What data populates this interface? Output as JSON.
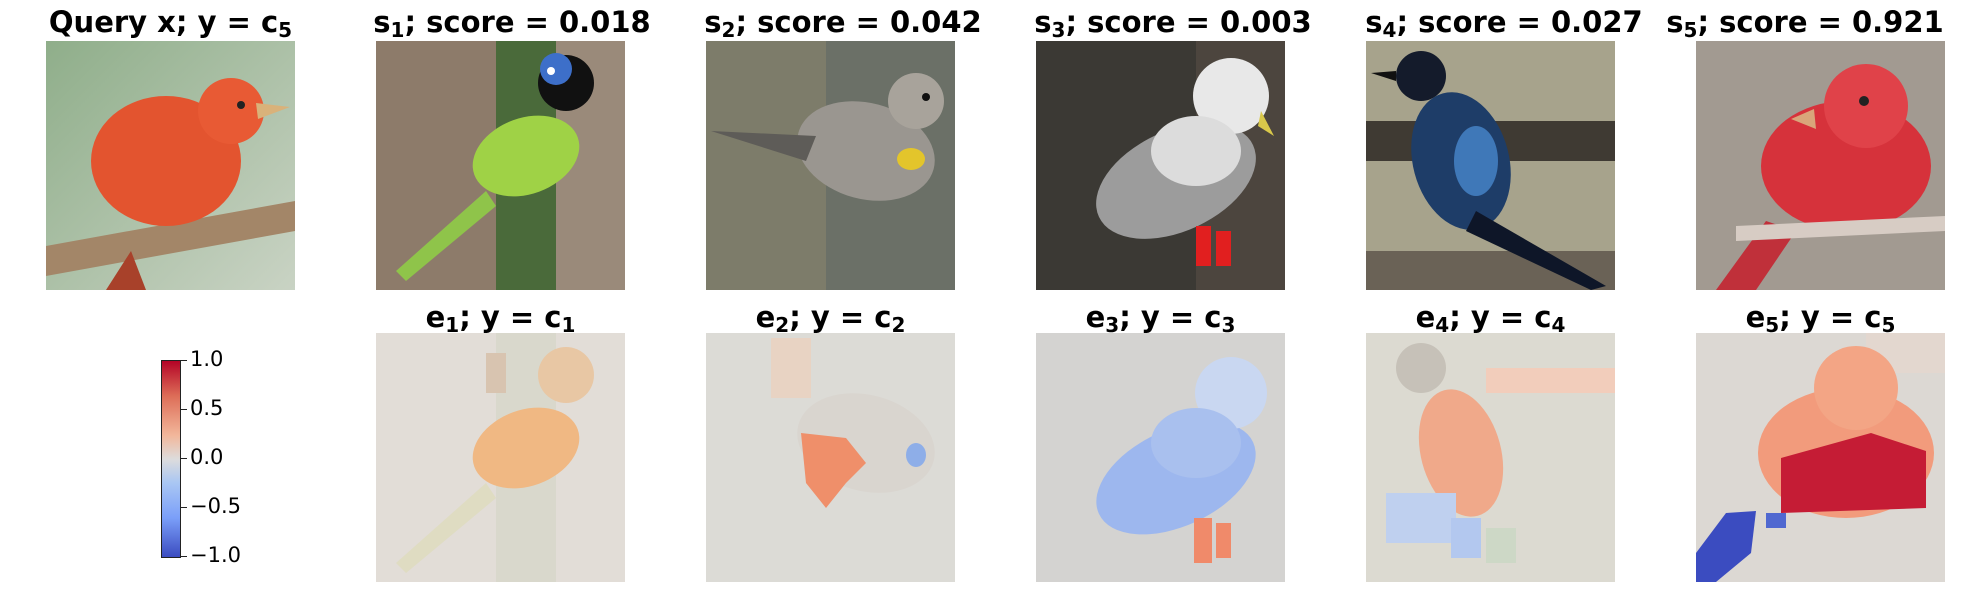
{
  "query": {
    "prefix": "Query x; y = c",
    "sub": "5"
  },
  "support": [
    {
      "s_sub": "1",
      "score_text": "; score = 0.018"
    },
    {
      "s_sub": "2",
      "score_text": "; score = 0.042"
    },
    {
      "s_sub": "3",
      "score_text": "; score = 0.003"
    },
    {
      "s_sub": "4",
      "score_text": "; score = 0.027"
    },
    {
      "s_sub": "5",
      "score_text": "; score = 0.921"
    }
  ],
  "explanations": [
    {
      "e_sub": "1",
      "mid": "; y = c",
      "c_sub": "1"
    },
    {
      "e_sub": "2",
      "mid": "; y = c",
      "c_sub": "2"
    },
    {
      "e_sub": "3",
      "mid": "; y = c",
      "c_sub": "3"
    },
    {
      "e_sub": "4",
      "mid": "; y = c",
      "c_sub": "4"
    },
    {
      "e_sub": "5",
      "mid": "; y = c",
      "c_sub": "5"
    }
  ],
  "colorbar": {
    "ticks": [
      "1.0",
      "0.5",
      "0.0",
      "−0.5",
      "−1.0"
    ],
    "colormap": "coolwarm",
    "range": [
      -1.0,
      1.0
    ]
  },
  "colors": {
    "positive": "#b40426",
    "neutral": "#dddcdc",
    "negative": "#3b4cc0"
  }
}
